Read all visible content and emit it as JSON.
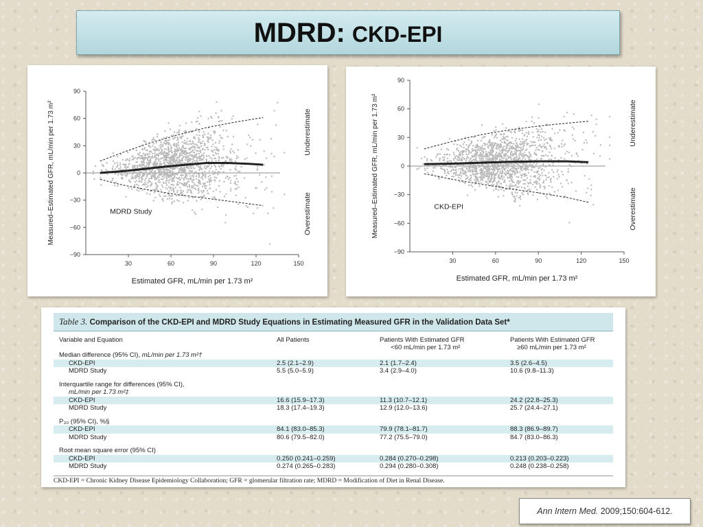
{
  "slide": {
    "title_bold": "MDRD:",
    "title_rest": "CKD-EPI",
    "citation_journal": "Ann Intern Med.",
    "citation_rest": "2009;150:604-612."
  },
  "chart_data": [
    {
      "type": "scatter",
      "title": "",
      "xlabel": "Estimated GFR, mL/min per 1.73 m²",
      "ylabel": "Measured–Estimated GFR, mL/min per 1.73 m²",
      "xlim": [
        0,
        150
      ],
      "ylim": [
        -90,
        90
      ],
      "xticks": [
        30,
        60,
        90,
        120,
        150
      ],
      "yticks": [
        -90,
        -60,
        -30,
        0,
        30,
        60,
        90
      ],
      "annotations": {
        "study_label": "MDRD Study",
        "upper": "Underestimate",
        "lower": "Overestimate"
      },
      "series": [
        {
          "name": "Median difference",
          "style": "solid",
          "x": [
            10,
            30,
            50,
            70,
            85,
            100,
            115,
            125
          ],
          "y": [
            0,
            2.5,
            6,
            9,
            11,
            11,
            10,
            9
          ]
        },
        {
          "name": "Upper percentile",
          "style": "dashed",
          "x": [
            10,
            25,
            45,
            65,
            85,
            105,
            125
          ],
          "y": [
            13,
            22,
            33,
            42,
            50,
            56,
            61
          ]
        },
        {
          "name": "Lower percentile",
          "style": "dashed",
          "x": [
            10,
            25,
            45,
            65,
            85,
            105,
            125
          ],
          "y": [
            -7,
            -13,
            -19,
            -24,
            -28,
            -32,
            -36
          ]
        }
      ],
      "scatter": {
        "x_center": 60,
        "x_spread": 34,
        "x_min": 5,
        "x_max": 140,
        "bias_curve": "median",
        "spread_base": 6,
        "spread_slope": 0.28,
        "n": 1600,
        "seed": 7
      }
    },
    {
      "type": "scatter",
      "title": "",
      "xlabel": "Estimated GFR, mL/min per 1.73 m²",
      "ylabel": "Measured–Estimated GFR, mL/min per 1.73 m²",
      "xlim": [
        0,
        150
      ],
      "ylim": [
        -90,
        90
      ],
      "xticks": [
        30,
        60,
        90,
        120,
        150
      ],
      "yticks": [
        -90,
        -60,
        -30,
        0,
        30,
        60,
        90
      ],
      "annotations": {
        "study_label": "CKD-EPI",
        "upper": "Underestimate",
        "lower": "Overestimate"
      },
      "series": [
        {
          "name": "Median difference",
          "style": "solid",
          "x": [
            10,
            30,
            50,
            70,
            90,
            110,
            125
          ],
          "y": [
            2,
            2.5,
            3.5,
            4.5,
            5,
            5,
            4
          ]
        },
        {
          "name": "Upper percentile",
          "style": "dashed",
          "x": [
            10,
            30,
            50,
            70,
            90,
            110,
            125
          ],
          "y": [
            18,
            26,
            33,
            38,
            42,
            45,
            47
          ]
        },
        {
          "name": "Lower percentile",
          "style": "dashed",
          "x": [
            10,
            30,
            50,
            70,
            90,
            110,
            125
          ],
          "y": [
            -8,
            -14,
            -19,
            -24,
            -28,
            -33,
            -38
          ]
        }
      ],
      "scatter": {
        "x_center": 60,
        "x_spread": 34,
        "x_min": 5,
        "x_max": 140,
        "bias_curve": "median",
        "spread_base": 7,
        "spread_slope": 0.22,
        "n": 1600,
        "seed": 21
      }
    }
  ],
  "table": {
    "title_num": "Table 3.",
    "title_text": "Comparison of the CKD-EPI and MDRD Study Equations in Estimating Measured GFR in the Validation Data Set*",
    "headers": {
      "variable": "Variable and Equation",
      "all": "All Patients",
      "lt60_l1": "Patients With Estimated GFR",
      "lt60_l2": "<60 mL/min per 1.73 m²",
      "ge60_l1": "Patients With Estimated GFR",
      "ge60_l2": "≥60 mL/min per 1.73 m²"
    },
    "sections": [
      {
        "label": "Median difference (95% CI),",
        "label_italic": "mL/min per 1.73 m²†",
        "label2": "",
        "rows": [
          {
            "eq": "CKD-EPI",
            "all": "2.5 (2.1–2.9)",
            "lt60": "2.1 (1.7–2.4)",
            "ge60": "3.5 (2.6–4.5)"
          },
          {
            "eq": "MDRD Study",
            "all": "5.5 (5.0–5.9)",
            "lt60": "3.4 (2.9–4.0)",
            "ge60": "10.6 (9.8–11.3)"
          }
        ]
      },
      {
        "label": "Interquartile range for differences (95% CI),",
        "label_italic": "",
        "label2": "mL/min per 1.73 m²‡",
        "rows": [
          {
            "eq": "CKD-EPI",
            "all": "16.6 (15.9–17.3)",
            "lt60": "11.3 (10.7–12.1)",
            "ge60": "24.2 (22.8–25.3)"
          },
          {
            "eq": "MDRD Study",
            "all": "18.3 (17.4–19.3)",
            "lt60": "12.9 (12.0–13.6)",
            "ge60": "25.7 (24.4–27.1)"
          }
        ]
      },
      {
        "label": "P₃₀ (95% CI), %§",
        "label_italic": "",
        "label2": "",
        "rows": [
          {
            "eq": "CKD-EPI",
            "all": "84.1 (83.0–85.3)",
            "lt60": "79.9 (78.1–81.7)",
            "ge60": "88.3 (86.9–89.7)"
          },
          {
            "eq": "MDRD Study",
            "all": "80.6 (79.5–82.0)",
            "lt60": "77.2 (75.5–79.0)",
            "ge60": "84.7 (83.0–86.3)"
          }
        ]
      },
      {
        "label": "Root mean square error (95% CI)",
        "label_italic": "",
        "label2": "",
        "rows": [
          {
            "eq": "CKD-EPI",
            "all": "0.250 (0.241–0.259)",
            "lt60": "0.284 (0.270–0.298)",
            "ge60": "0.213 (0.203–0.223)"
          },
          {
            "eq": "MDRD Study",
            "all": "0.274 (0.265–0.283)",
            "lt60": "0.294 (0.280–0.308)",
            "ge60": "0.248 (0.238–0.258)"
          }
        ]
      }
    ],
    "footnote": "CKD-EPI = Chronic Kidney Disease Epidemiology Collaboration; GFR = glomerular filtration rate; MDRD = Modification of Diet in Renal Disease."
  }
}
